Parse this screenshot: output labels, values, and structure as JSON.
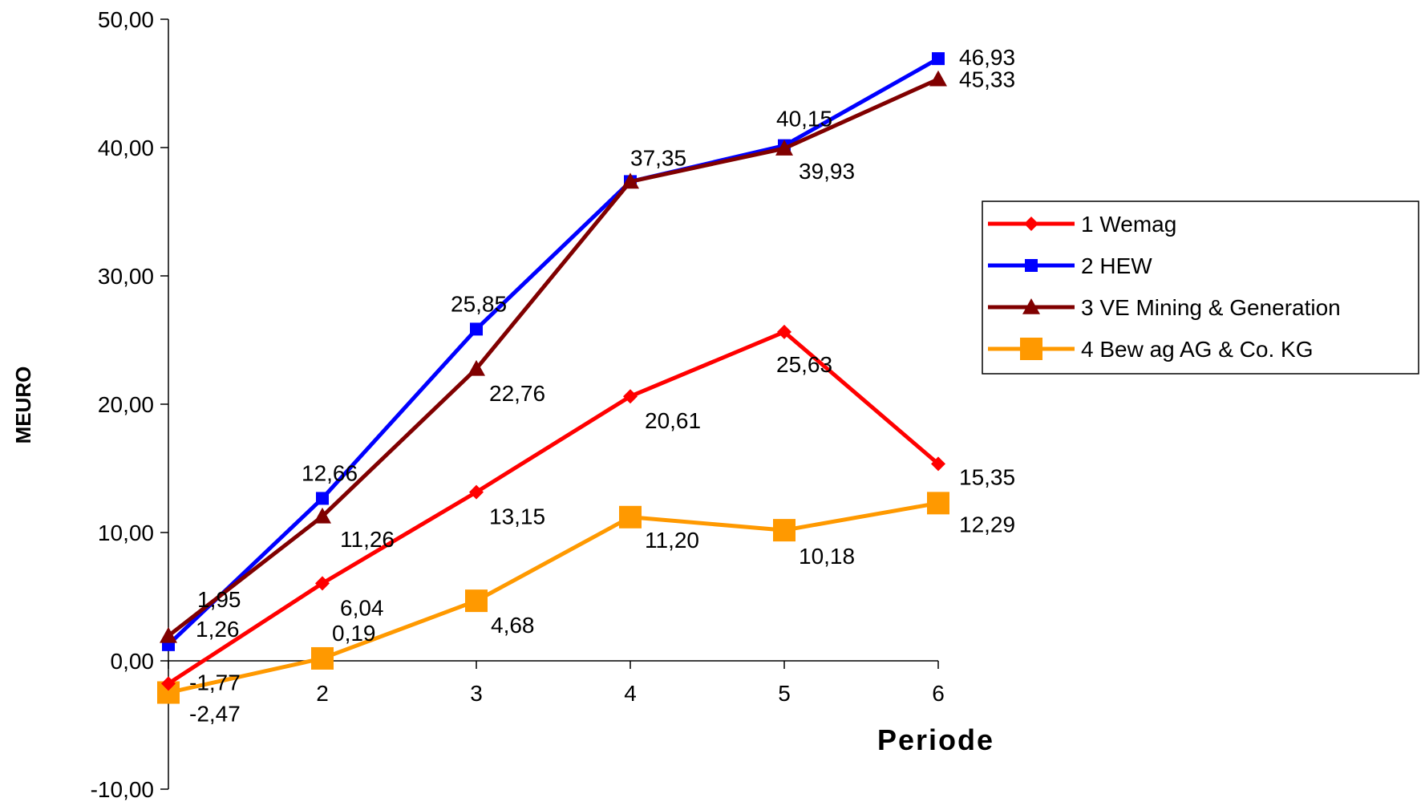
{
  "chart_data": {
    "type": "line",
    "categories": [
      "1",
      "2",
      "3",
      "4",
      "5",
      "6"
    ],
    "xlabel": "Periode",
    "ylabel": "MEURO",
    "ylim": [
      -10,
      50
    ],
    "yticks": [
      "50,00",
      "40,00",
      "30,00",
      "20,00",
      "10,00",
      "0,00",
      "-10,00"
    ],
    "ytick_values": [
      50,
      40,
      30,
      20,
      10,
      0,
      -10
    ],
    "grid": false,
    "legend_position": "right",
    "series": [
      {
        "name": "1 Wemag",
        "color": "#FF0000",
        "marker": "diamond",
        "values": [
          -1.77,
          6.04,
          13.15,
          20.61,
          25.63,
          15.35
        ],
        "labels": [
          "-1,77",
          "6,04",
          "13,15",
          "20,61",
          "25,63",
          "15,35"
        ]
      },
      {
        "name": "2 HEW",
        "color": "#0000FF",
        "marker": "square",
        "values": [
          1.26,
          12.66,
          25.85,
          37.35,
          40.15,
          46.93
        ],
        "labels": [
          "1,26",
          "12,66",
          "25,85",
          "37,35",
          "40,15",
          "46,93"
        ]
      },
      {
        "name": "3 VE Mining & Generation",
        "color": "#800000",
        "marker": "triangle",
        "values": [
          1.95,
          11.26,
          22.76,
          37.35,
          39.93,
          45.33
        ],
        "labels": [
          "1,95",
          "11,26",
          "22,76",
          "",
          "39,93",
          "45,33"
        ]
      },
      {
        "name": "4 Bew ag AG & Co. KG",
        "color": "#FF9900",
        "marker": "bigsquare",
        "values": [
          -2.47,
          0.19,
          4.68,
          11.2,
          10.18,
          12.29
        ],
        "labels": [
          "-2,47",
          "0,19",
          "4,68",
          "11,20",
          "10,18",
          "12,29"
        ]
      }
    ]
  }
}
